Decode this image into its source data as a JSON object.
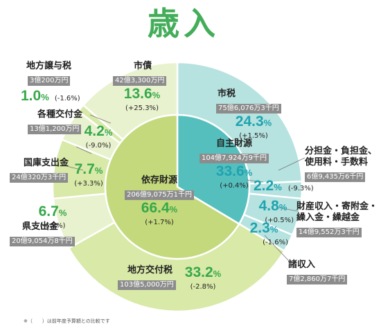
{
  "title": "歳入",
  "note": "※（　　）は前年度予算額との比較です",
  "colors": {
    "title": "#43ad59",
    "green_text": "#36a84a",
    "teal_text": "#1fa3b0",
    "own_inner": "#55bfbd",
    "own_outer": "#b6e2df",
    "dep_inner": "#c4d97c",
    "dep_outer_light": "#e9f2cf",
    "dep_outer_mid": "#d8e9a8",
    "amount_box": "#8c8c8c"
  },
  "chart_data": {
    "type": "pie",
    "inner": [
      {
        "name": "自主財源",
        "amount": "104億7,924万9千円",
        "percent": 33.6,
        "change": "(+0.4%)"
      },
      {
        "name": "依存財源",
        "amount": "206億9,075万1千円",
        "percent": 66.4,
        "change": "(+1.7%)"
      }
    ],
    "outer": [
      {
        "name": "市税",
        "amount": "75億6,076万3千円",
        "percent": 24.3,
        "change": "(+1.5%)",
        "group": "own"
      },
      {
        "name": "分担金・負担金、使用料・手数料",
        "name_lines": [
          "分担金・負担金、",
          "使用料・手数料"
        ],
        "amount": "6億9,435万6千円",
        "percent": 2.2,
        "change": "(-9.3%)",
        "group": "own"
      },
      {
        "name": "財産収入・寄附金・繰入金・繰越金",
        "name_lines": [
          "財産収入・寄附金・",
          "繰入金・繰越金"
        ],
        "amount": "14億9,552万3千円",
        "percent": 4.8,
        "change": "(+0.5%)",
        "group": "own"
      },
      {
        "name": "諸収入",
        "amount": "7億2,860万7千円",
        "percent": 2.3,
        "change": "(-1.6%)",
        "group": "own"
      },
      {
        "name": "地方交付税",
        "amount": "103億5,000万円",
        "percent": 33.2,
        "change": "(-2.8%)",
        "group": "dep"
      },
      {
        "name": "県支出金",
        "amount": "20億9,054万8千円",
        "percent": 6.7,
        "change": "(-6.8%)",
        "group": "dep"
      },
      {
        "name": "国庫支出金",
        "amount": "24億320万3千円",
        "percent": 7.7,
        "change": "(+3.3%)",
        "group": "dep"
      },
      {
        "name": "各種交付金",
        "amount": "13億1,200万円",
        "percent": 4.2,
        "change": "(-9.0%)",
        "group": "dep"
      },
      {
        "name": "地方譲与税",
        "amount": "3億200万円",
        "percent": 1.0,
        "change": "(-1.6%)",
        "group": "dep"
      },
      {
        "name": "市債",
        "amount": "42億3,300万円",
        "percent": 13.6,
        "change": "(+25.3%)",
        "group": "dep"
      }
    ]
  }
}
